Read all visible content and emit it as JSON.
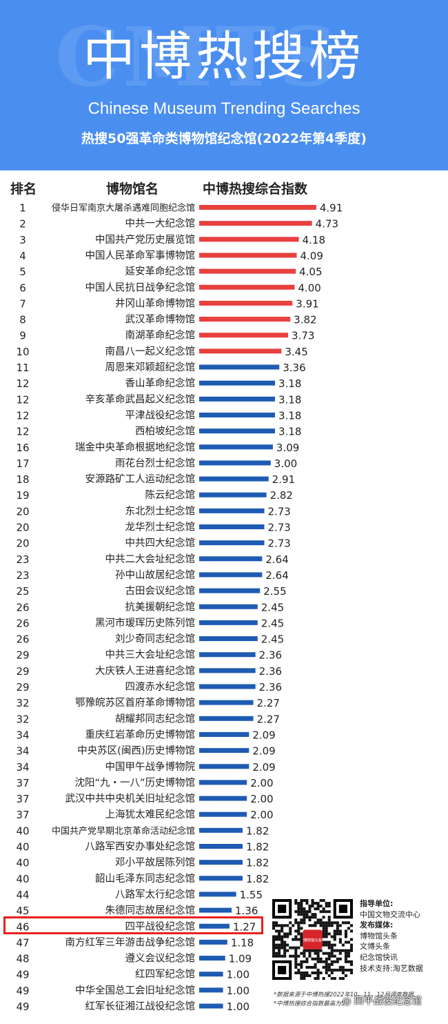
{
  "header": {
    "watermark": "CMTS",
    "title": "中博热搜榜",
    "subtitle_en": "Chinese Museum Trending Searches",
    "subtitle_cn": "热搜50强革命类博物馆纪念馆(2022年第4季度)"
  },
  "columns": {
    "rank": "排名",
    "name": "博物馆名",
    "score": "中博热搜综合指数"
  },
  "colors": {
    "header_bg": "#4a8ef0",
    "top10": "#e8403f",
    "others": "#1e5bb3",
    "highlight": "#e8201c"
  },
  "chart_data": {
    "type": "bar",
    "orientation": "horizontal",
    "categories": [
      "侵华日军南京大屠杀遇难同胞纪念馆",
      "中共一大纪念馆",
      "中国共产党历史展览馆",
      "中国人民革命军事博物馆",
      "延安革命纪念馆",
      "中国人民抗日战争纪念馆",
      "井冈山革命博物馆",
      "武汉革命博物馆",
      "南湖革命纪念馆",
      "南昌八一起义纪念馆",
      "周恩来邓颖超纪念馆",
      "香山革命纪念馆",
      "辛亥革命武昌起义纪念馆",
      "平津战役纪念馆",
      "西柏坡纪念馆",
      "瑞金中央革命根据地纪念馆",
      "雨花台烈士纪念馆",
      "安源路矿工人运动纪念馆",
      "陈云纪念馆",
      "东北烈士纪念馆",
      "龙华烈士纪念馆",
      "中共四大纪念馆",
      "中共二大会址纪念馆",
      "孙中山故居纪念馆",
      "古田会议纪念馆",
      "抗美援朝纪念馆",
      "黑河市瑷珲历史陈列馆",
      "刘少奇同志纪念馆",
      "中共三大会址纪念馆",
      "大庆铁人王进喜纪念馆",
      "四渡赤水纪念馆",
      "鄂豫皖苏区首府革命博物馆",
      "胡耀邦同志纪念馆",
      "重庆红岩革命历史博物馆",
      "中央苏区(闽西)历史博物馆",
      "中国甲午战争博物院",
      "沈阳“九・一八”历史博物馆",
      "武汉中共中央机关旧址纪念馆",
      "上海犹太难民纪念馆",
      "中国共产党早期北京革命活动纪念馆",
      "八路军西安办事处纪念馆",
      "邓小平故居陈列馆",
      "韶山毛泽东同志纪念馆",
      "八路军太行纪念馆",
      "朱德同志故居纪念馆",
      "四平战役纪念馆",
      "南方红军三年游击战争纪念馆",
      "遵义会议纪念馆",
      "红四军纪念馆",
      "中华全国总工会旧址纪念馆",
      "红军长征湘江战役纪念馆"
    ],
    "ranks": [
      "1",
      "2",
      "3",
      "4",
      "5",
      "6",
      "7",
      "8",
      "9",
      "10",
      "11",
      "12",
      "12",
      "12",
      "12",
      "16",
      "17",
      "18",
      "19",
      "20",
      "20",
      "20",
      "23",
      "23",
      "25",
      "26",
      "26",
      "26",
      "29",
      "29",
      "29",
      "32",
      "32",
      "34",
      "34",
      "34",
      "37",
      "37",
      "37",
      "40",
      "40",
      "40",
      "40",
      "44",
      "45",
      "46",
      "47",
      "48",
      "49",
      "49",
      "49"
    ],
    "values": [
      4.91,
      4.73,
      4.18,
      4.09,
      4.05,
      4.0,
      3.91,
      3.82,
      3.73,
      3.45,
      3.36,
      3.18,
      3.18,
      3.18,
      3.18,
      3.09,
      3.0,
      2.91,
      2.82,
      2.73,
      2.73,
      2.73,
      2.64,
      2.64,
      2.55,
      2.45,
      2.45,
      2.45,
      2.36,
      2.36,
      2.36,
      2.27,
      2.27,
      2.09,
      2.09,
      2.09,
      2.0,
      2.0,
      2.0,
      1.82,
      1.82,
      1.82,
      1.82,
      1.55,
      1.36,
      1.27,
      1.18,
      1.09,
      1.0,
      1.0,
      1.0
    ],
    "value_labels": [
      "4.91",
      "4.73",
      "4.18",
      "4.09",
      "4.05",
      "4.00",
      "3.91",
      "3.82",
      "3.73",
      "3.45",
      "3.36",
      "3.18",
      "3.18",
      "3.18",
      "3.18",
      "3.09",
      "3.00",
      "2.91",
      "2.82",
      "2.73",
      "2.73",
      "2.73",
      "2.64",
      "2.64",
      "2.55",
      "2.45",
      "2.45",
      "2.45",
      "2.36",
      "2.36",
      "2.36",
      "2.27",
      "2.27",
      "2.09",
      "2.09",
      "2.09",
      "2.00",
      "2.00",
      "2.00",
      "1.82",
      "1.82",
      "1.82",
      "1.82",
      "1.55",
      "1.36",
      "1.27",
      "1.18",
      "1.09",
      "1.00",
      "1.00",
      "1.00"
    ],
    "highlight_index": 45
  },
  "sponsor": {
    "guide_label": "指导单位:",
    "guide": "中国文物交流中心",
    "media_label": "发布媒体:",
    "media": [
      "博物馆头条",
      "文博头条",
      "纪念馆快讯"
    ],
    "tech": "技术支持:淘艺数据",
    "qr_text": "博物馆头条"
  },
  "notes": [
    "*数据来源于中博热搜2022年10、11、12月调查数据",
    "*中博热搜综合指数最高为5"
  ],
  "badge": "四平战役纪念馆"
}
